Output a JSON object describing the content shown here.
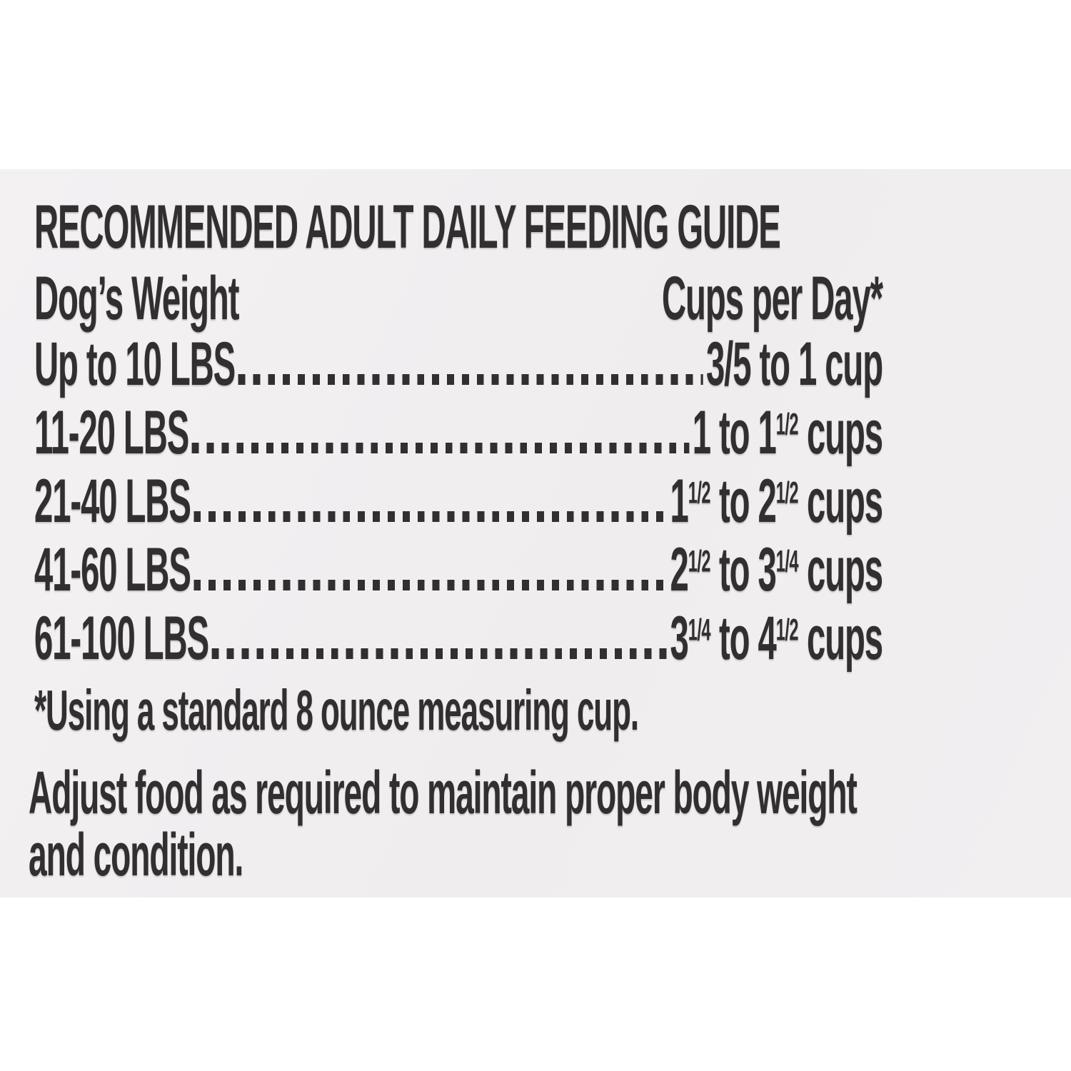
{
  "colors": {
    "page_bg": "#ffffff",
    "label_bg": "#f1eff0",
    "text": "#312f30"
  },
  "guide": {
    "title": "RECOMMENDED ADULT DAILY FEEDING GUIDE",
    "columns": {
      "weight": "Dog’s Weight",
      "cups": "Cups per Day*"
    },
    "rows": [
      {
        "weight": "Up to 10 LBS",
        "cups": [
          {
            "t": "3/5 to 1 cup"
          }
        ]
      },
      {
        "weight": "11-20 LBS",
        "cups": [
          {
            "t": "1 to 1"
          },
          {
            "t": "1/2",
            "sup": true
          },
          {
            "t": " cups"
          }
        ]
      },
      {
        "weight": "21-40 LBS",
        "cups": [
          {
            "t": "1"
          },
          {
            "t": "1/2",
            "sup": true
          },
          {
            "t": " to 2"
          },
          {
            "t": "1/2",
            "sup": true
          },
          {
            "t": " cups"
          }
        ]
      },
      {
        "weight": "41-60 LBS",
        "cups": [
          {
            "t": "2"
          },
          {
            "t": "1/2",
            "sup": true
          },
          {
            "t": " to 3"
          },
          {
            "t": "1/4",
            "sup": true
          },
          {
            "t": " cups"
          }
        ]
      },
      {
        "weight": "61-100 LBS",
        "cups": [
          {
            "t": "3"
          },
          {
            "t": "1/4",
            "sup": true
          },
          {
            "t": " to 4"
          },
          {
            "t": "1/2",
            "sup": true
          },
          {
            "t": " cups"
          }
        ]
      }
    ],
    "footnote": "*Using a standard 8 ounce measuring cup.",
    "note": {
      "line1": "Adjust food as required to maintain proper body weight",
      "line2": "and condition."
    }
  }
}
